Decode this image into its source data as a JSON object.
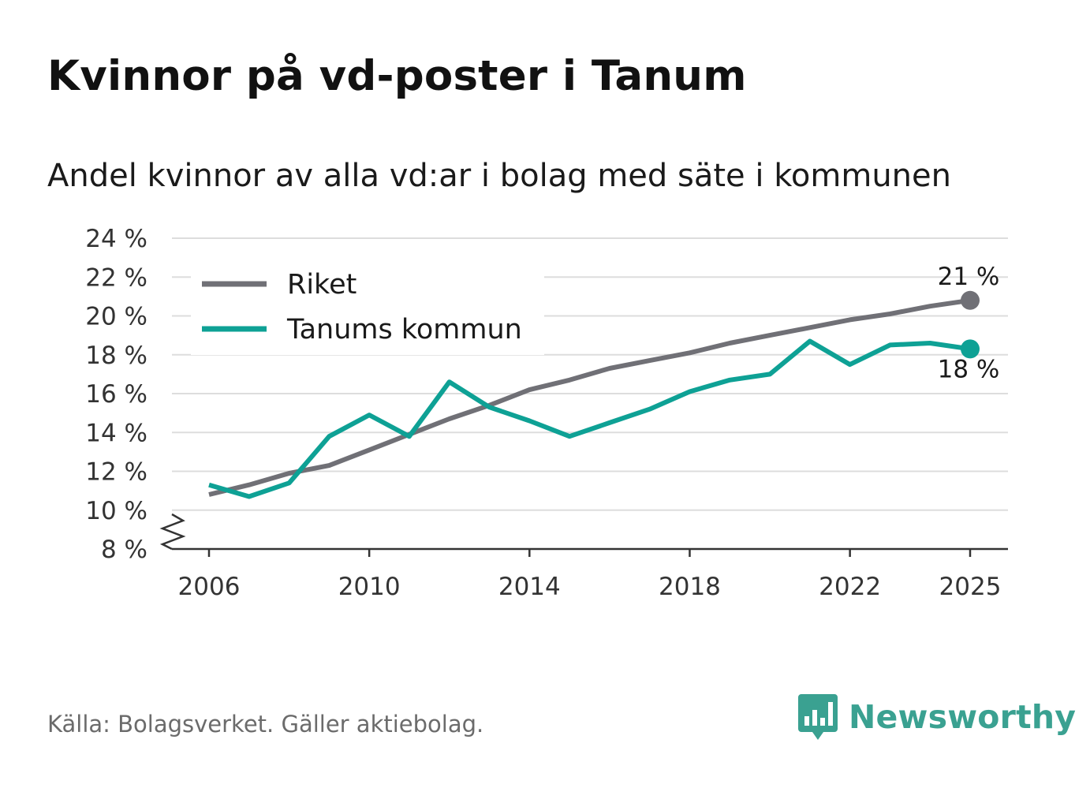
{
  "title": "Kvinnor på vd-poster i Tanum",
  "subtitle": "Andel kvinnor av alla vd:ar i bolag med säte i kommunen",
  "source": "Källa: Bolagsverket. Gäller aktiebolag.",
  "brand": {
    "name": "Newsworthy"
  },
  "colors": {
    "riket": "#707076",
    "tanum": "#0ea195",
    "grid": "#dddddd",
    "axis": "#333333",
    "brand": "#3aa191"
  },
  "chart_data": {
    "type": "line",
    "title": "Kvinnor på vd-poster i Tanum",
    "subtitle": "Andel kvinnor av alla vd:ar i bolag med säte i kommunen",
    "xlabel": "",
    "ylabel": "",
    "x": [
      2006,
      2007,
      2008,
      2009,
      2010,
      2011,
      2012,
      2013,
      2014,
      2015,
      2016,
      2017,
      2018,
      2019,
      2020,
      2021,
      2022,
      2023,
      2024,
      2025
    ],
    "x_ticks": [
      2006,
      2010,
      2014,
      2018,
      2022,
      2025
    ],
    "x_tick_labels": [
      "2006",
      "2010",
      "2014",
      "2018",
      "2022",
      "2025"
    ],
    "y_ticks": [
      8,
      10,
      12,
      14,
      16,
      18,
      20,
      22,
      24
    ],
    "y_tick_labels": [
      "8 %",
      "10 %",
      "12 %",
      "14 %",
      "16 %",
      "18 %",
      "20 %",
      "22 %",
      "24 %"
    ],
    "ylim": [
      8,
      24
    ],
    "xlim": [
      2006,
      2025
    ],
    "y_axis_break": true,
    "grid": true,
    "legend_position": "top-left",
    "series": [
      {
        "name": "Riket",
        "key": "riket",
        "values": [
          10.8,
          11.3,
          11.9,
          12.3,
          13.1,
          13.9,
          14.7,
          15.4,
          16.2,
          16.7,
          17.3,
          17.7,
          18.1,
          18.6,
          19.0,
          19.4,
          19.8,
          20.1,
          20.5,
          20.8
        ],
        "end_label": "21 %",
        "end_label_position": "above"
      },
      {
        "name": "Tanums kommun",
        "key": "tanum",
        "values": [
          11.3,
          10.7,
          11.4,
          13.8,
          14.9,
          13.8,
          16.6,
          15.3,
          14.6,
          13.8,
          14.5,
          15.2,
          16.1,
          16.7,
          17.0,
          18.7,
          17.5,
          18.5,
          18.6,
          18.3
        ],
        "end_label": "18 %",
        "end_label_position": "below"
      }
    ]
  }
}
